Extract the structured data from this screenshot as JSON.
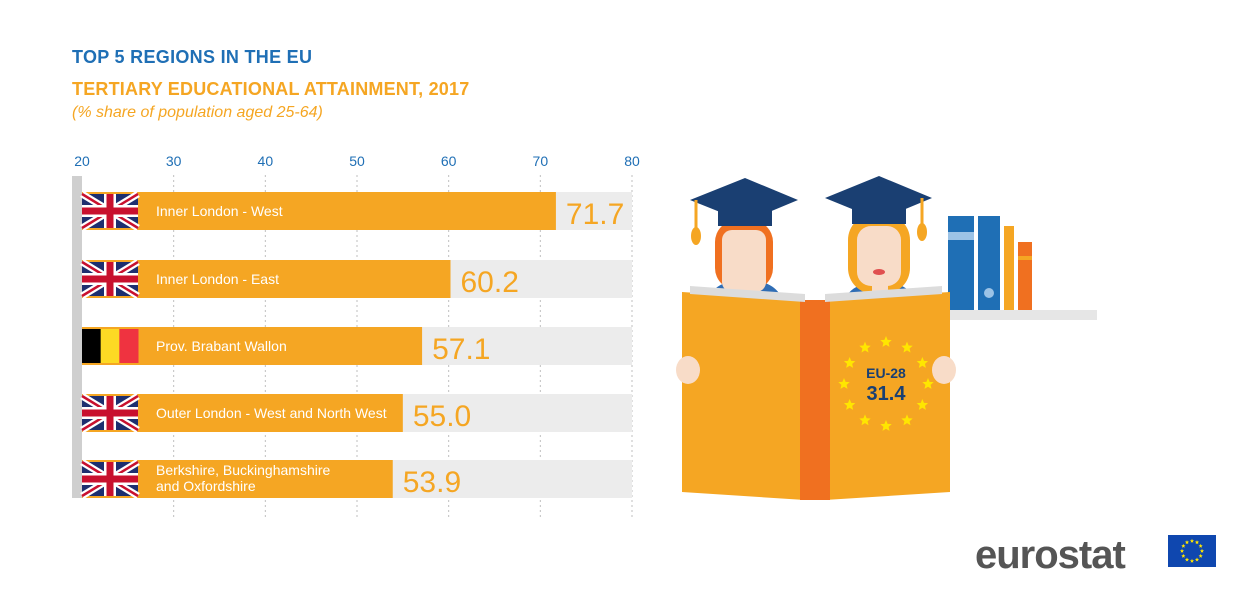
{
  "header": {
    "title": "TOP 5 REGIONS IN THE EU",
    "subtitle": "TERTIARY EDUCATIONAL ATTAINMENT, 2017",
    "note": "(% share of population aged 25-64)"
  },
  "colors": {
    "bar": "#f5a623",
    "track": "#ececec",
    "value_text": "#f5a623",
    "grid": "#bfbfbf",
    "axis_bar": "#cfcfcf"
  },
  "chart_data": {
    "type": "bar",
    "orientation": "horizontal",
    "title": "TERTIARY EDUCATIONAL ATTAINMENT, 2017",
    "xlim": [
      20,
      80
    ],
    "ticks": [
      20,
      30,
      40,
      50,
      60,
      70,
      80
    ],
    "grid": true,
    "categories": [
      {
        "label": "Inner London - West",
        "flag": "uk-flag-icon"
      },
      {
        "label": "Inner London - East",
        "flag": "uk-flag-icon"
      },
      {
        "label": "Prov. Brabant Wallon",
        "flag": "belgium-flag-icon"
      },
      {
        "label": "Outer London - West and North West",
        "flag": "uk-flag-icon"
      },
      {
        "label": "Berkshire, Buckinghamshire and Oxfordshire",
        "label_lines": [
          "Berkshire, Buckinghamshire",
          "and Oxfordshire"
        ],
        "flag": "uk-flag-icon"
      }
    ],
    "values": [
      71.7,
      60.2,
      57.1,
      55.0,
      53.9
    ],
    "value_labels": [
      "71.7",
      "60.2",
      "57.1",
      "55.0",
      "53.9"
    ]
  },
  "illustration": {
    "book_label": "EU-28",
    "book_value": "31.4"
  },
  "logo": {
    "text": "eurostat",
    "flag_icon": "eu-flag-icon"
  }
}
